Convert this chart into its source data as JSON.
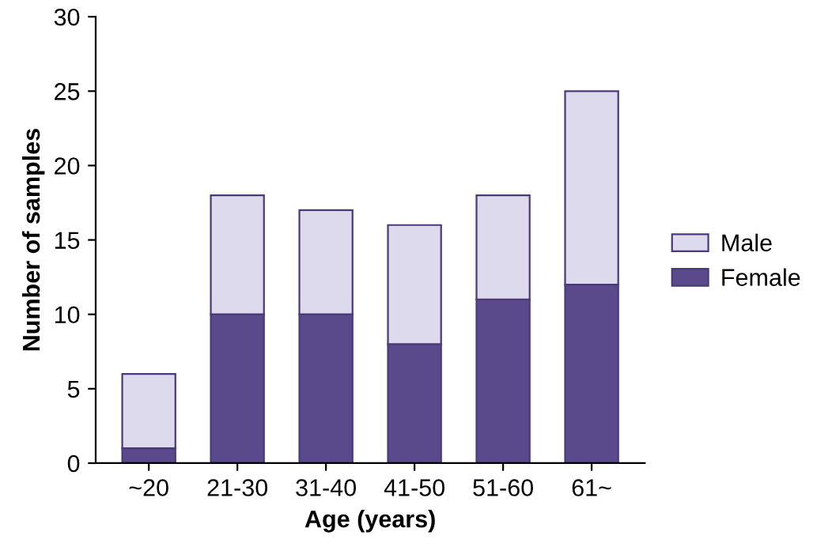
{
  "chart_data": {
    "type": "bar",
    "stacked": true,
    "xlabel": "Age (years)",
    "ylabel": "Number of samples",
    "categories": [
      "~20",
      "21-30",
      "31-40",
      "41-50",
      "51-60",
      "61~"
    ],
    "series": [
      {
        "name": "Female",
        "color": "#5b4a8b",
        "values": [
          1,
          10,
          10,
          8,
          11,
          12
        ]
      },
      {
        "name": "Male",
        "color": "#dedaee",
        "values": [
          5,
          8,
          7,
          8,
          7,
          13
        ]
      }
    ],
    "ylim": [
      0,
      30
    ],
    "yticks": [
      0,
      5,
      10,
      15,
      20,
      25,
      30
    ],
    "grid": false,
    "legend": "right"
  }
}
